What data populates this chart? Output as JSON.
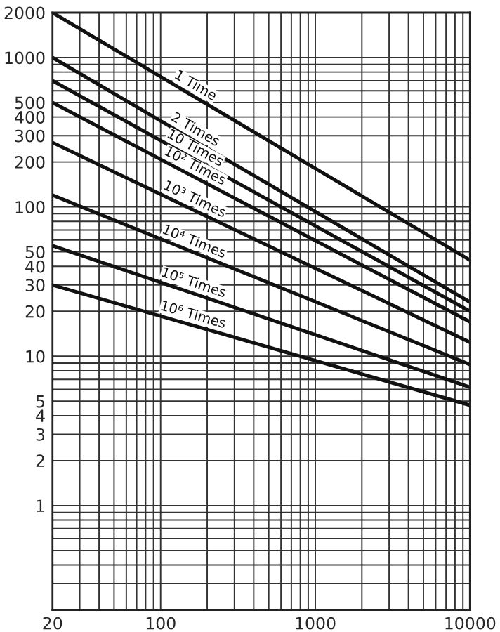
{
  "chart_data": {
    "type": "line",
    "log": "xy",
    "grid": true,
    "marker": "none",
    "line_style": "solid",
    "x": [
      20,
      10000
    ],
    "xlim": [
      20,
      10000
    ],
    "ylim": [
      0.2,
      2000
    ],
    "xticks": [
      20,
      100,
      1000,
      10000
    ],
    "yticks": [
      1,
      2,
      3,
      4,
      5,
      10,
      20,
      30,
      40,
      50,
      100,
      200,
      300,
      400,
      500,
      1000,
      2000
    ],
    "series": [
      {
        "color": "#111111",
        "values": [
          2000,
          44
        ]
      },
      {
        "color": "#111111",
        "values": [
          1000,
          23
        ]
      },
      {
        "color": "#111111",
        "values": [
          700,
          20
        ]
      },
      {
        "color": "#111111",
        "values": [
          500,
          17
        ]
      },
      {
        "color": "#111111",
        "values": [
          270,
          12.4
        ]
      },
      {
        "color": "#111111",
        "values": [
          120,
          8.8
        ]
      },
      {
        "color": "#111111",
        "values": [
          55,
          6.2
        ]
      },
      {
        "color": "#111111",
        "values": [
          30,
          4.7
        ]
      }
    ],
    "annotations": [
      "1 Time",
      "2 Times",
      "10 Times",
      "10² Times",
      "10³ Times",
      "10⁴ Times",
      "10⁵ Times",
      "10⁶ Times"
    ]
  }
}
